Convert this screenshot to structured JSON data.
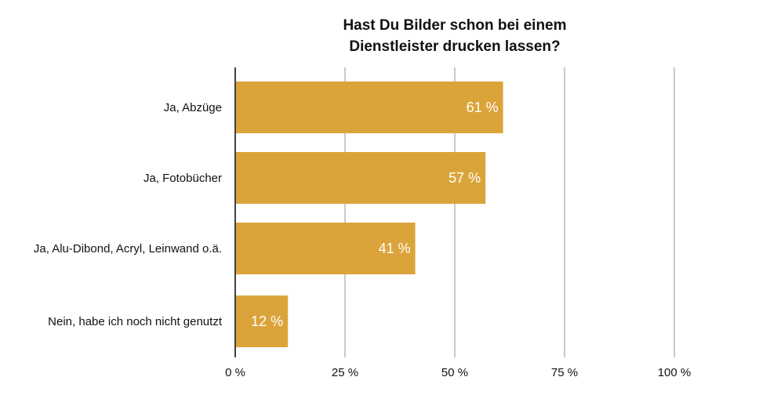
{
  "chart_data": {
    "type": "bar",
    "orientation": "horizontal",
    "title": [
      "Hast Du Bilder schon bei einem",
      "Dienstleister drucken lassen?"
    ],
    "categories": [
      "Ja, Abzüge",
      "Ja, Fotobücher",
      "Ja, Alu-Dibond, Acryl, Leinwand o.ä.",
      "Nein, habe ich noch nicht genutzt"
    ],
    "values": [
      61,
      57,
      41,
      12
    ],
    "data_labels": [
      "61 %",
      "57 %",
      "41 %",
      "12 %"
    ],
    "xlim": [
      0,
      100
    ],
    "x_ticks": [
      0,
      25,
      50,
      75,
      100
    ],
    "x_tick_labels": [
      "0 %",
      "25 %",
      "50 %",
      "75 %",
      "100 %"
    ],
    "xlabel": "",
    "ylabel": "",
    "grid": "vertical",
    "legend": "none",
    "bar_color": "#dba43a",
    "grid_color": "#b8b8b8",
    "axis_color": "#000000"
  }
}
